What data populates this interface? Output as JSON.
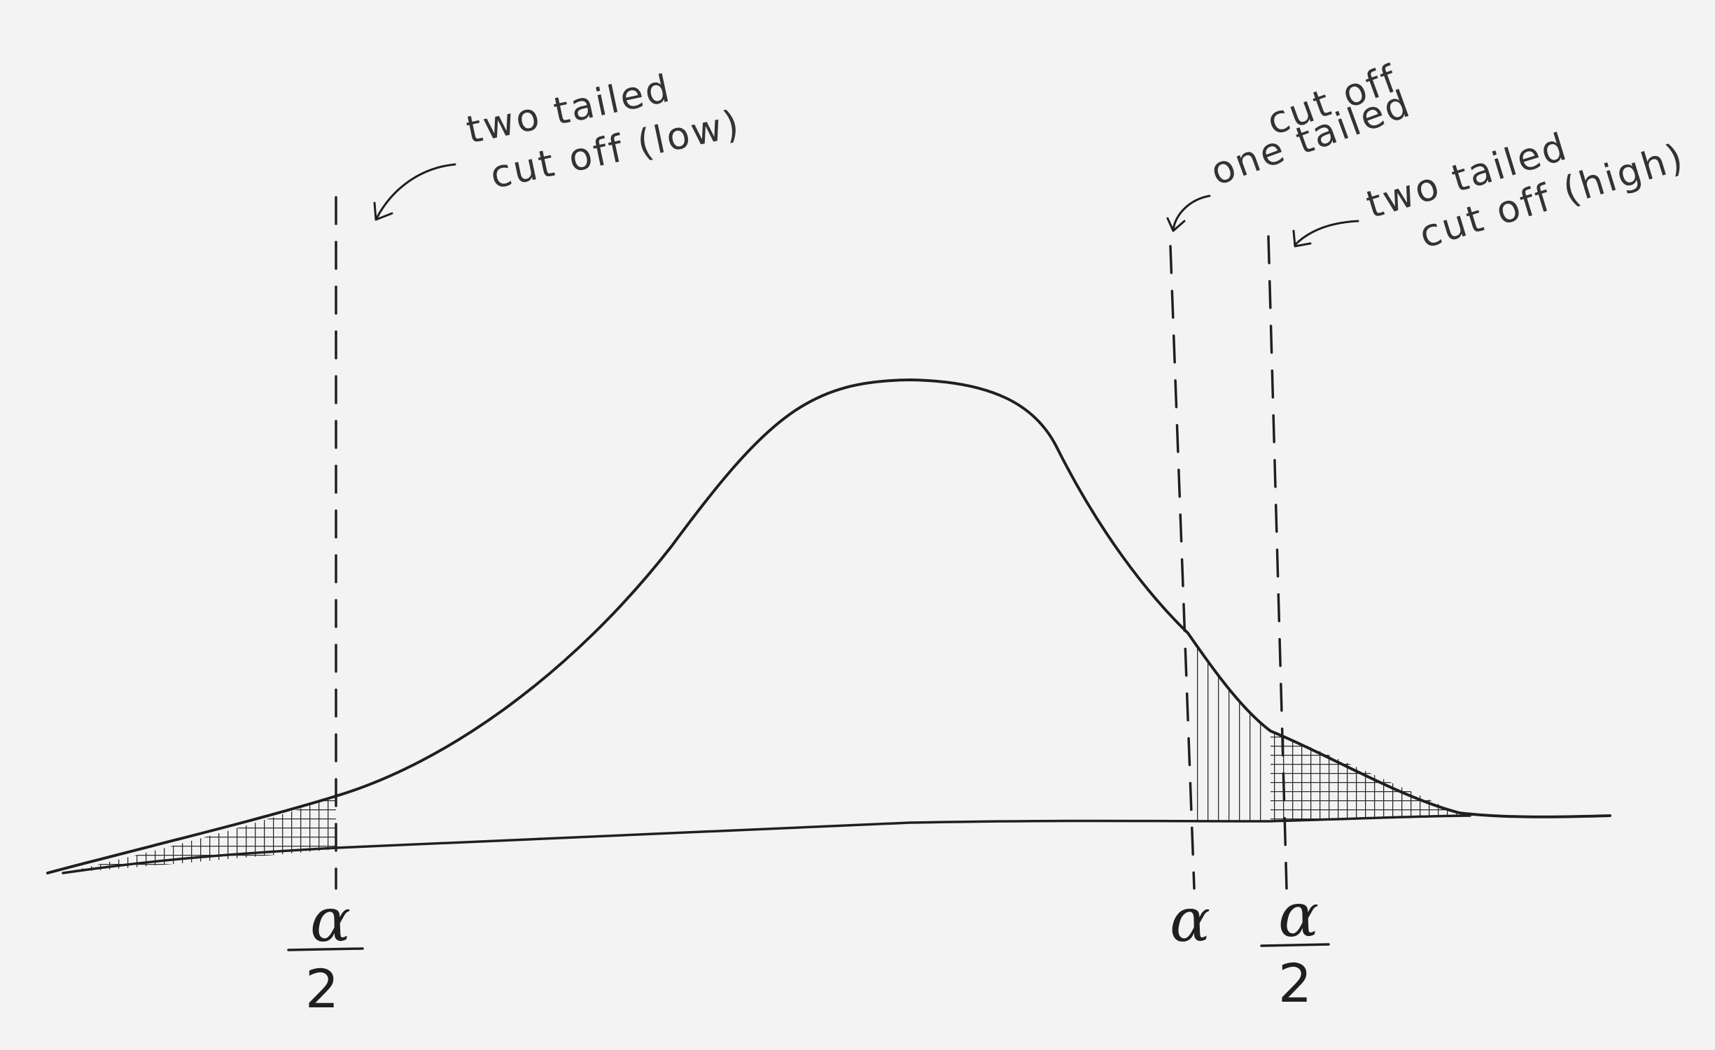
{
  "annotations": {
    "two_tailed_low": {
      "line1": "two tailed",
      "line2": "cut off (low)"
    },
    "one_tailed": {
      "line1": "one tailed",
      "line2": "cut off"
    },
    "two_tailed_high": {
      "line1": "two tailed",
      "line2": "cut off (high)"
    }
  },
  "labels": {
    "alpha": "α",
    "half_numerator": "α",
    "half_denominator": "2"
  },
  "colors": {
    "paper": "#f3f3f3",
    "ink": "#1f1f1f",
    "pencil": "#333333"
  }
}
